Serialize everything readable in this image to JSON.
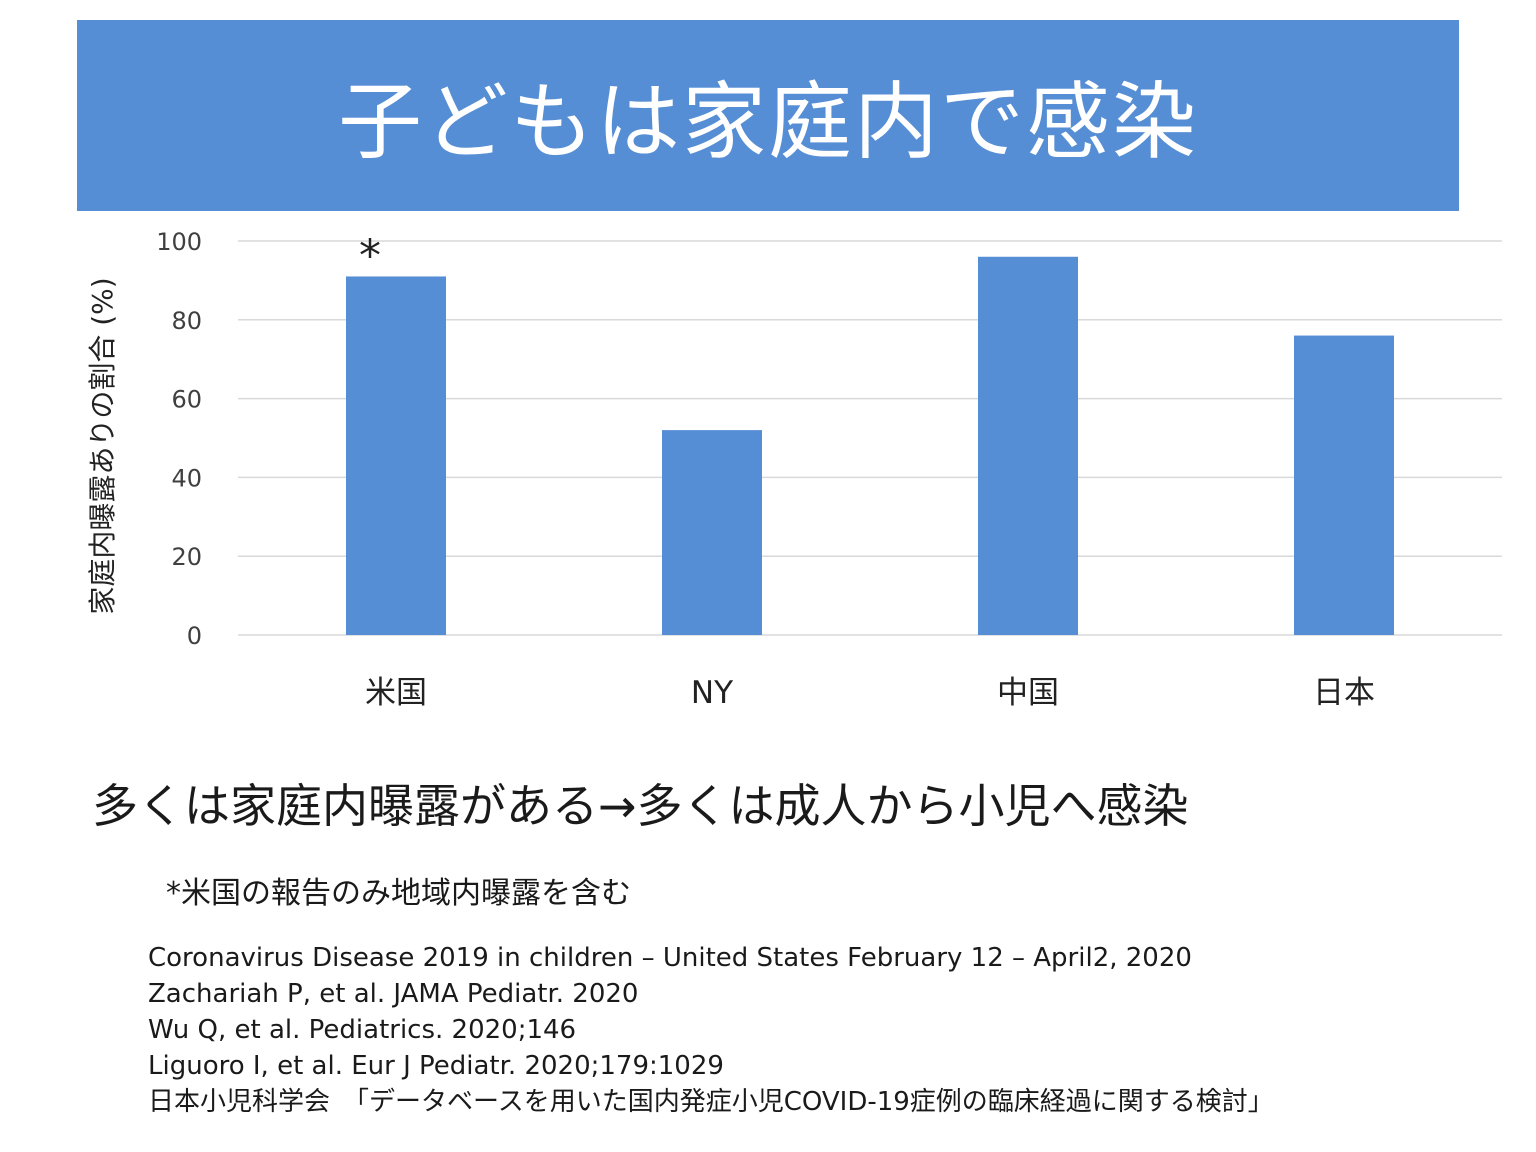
{
  "slide": {
    "title": "子どもは家庭内で感染",
    "conclusion": "多くは家庭内曝露がある→多くは成人から小児へ感染",
    "footnote": "*米国の報告のみ地域内曝露を含む",
    "references": [
      "Coronavirus Disease 2019 in children – United States February 12 – April2, 2020",
      "Zachariah P, et al. JAMA Pediatr. 2020",
      "Wu Q, et al. Pediatrics. 2020;146",
      "Liguoro I, et al. Eur J Pediatr. 2020;179:1029",
      "日本小児科学会　「データベースを用いた国内発症小児COVID-19症例の臨床経過に関する検討」"
    ]
  },
  "colors": {
    "banner": "#558ed5",
    "bar": "#558ed5",
    "grid": "#d9d9d9"
  },
  "chart_data": {
    "type": "bar",
    "title": "",
    "xlabel": "",
    "ylabel": "家庭内曝露ありの割合 (%)",
    "categories": [
      "米国",
      "NY",
      "中国",
      "日本"
    ],
    "values": [
      91,
      52,
      96,
      76
    ],
    "ylim": [
      0,
      100
    ],
    "yticks": [
      0,
      20,
      40,
      60,
      80,
      100
    ],
    "grid": true,
    "legend": "none",
    "annotations": [
      {
        "category": "米国",
        "text": "*"
      }
    ]
  }
}
